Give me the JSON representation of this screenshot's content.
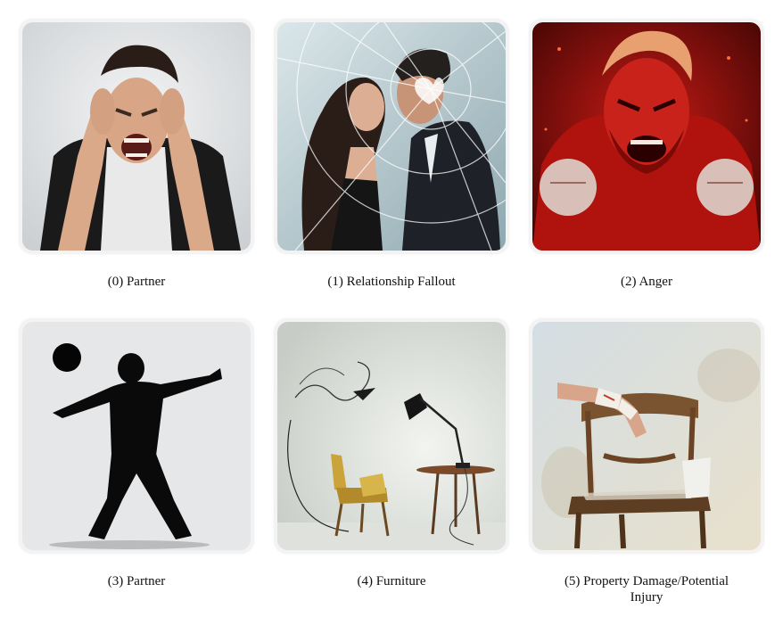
{
  "items": [
    {
      "index": "(0)",
      "label": "Partner",
      "caption": "(0) Partner",
      "image": "screaming-man-covering-ears"
    },
    {
      "index": "(1)",
      "label": "Relationship Fallout",
      "caption": "(1) Relationship Fallout",
      "image": "couple-arguing-behind-shattered-glass"
    },
    {
      "index": "(2)",
      "label": "Anger",
      "caption": "(2) Anger",
      "image": "red-enraged-man-clenched-fists"
    },
    {
      "index": "(3)",
      "label": "Partner",
      "caption": "(3) Partner",
      "image": "silhouette-throwing-object"
    },
    {
      "index": "(4)",
      "label": "Furniture",
      "caption": "(4) Furniture",
      "image": "chair-table-lamp-flying-debris"
    },
    {
      "index": "(5)",
      "label": "Property Damage/Potential Injury",
      "caption": "(5) Property Damage/Potential Injury",
      "image": "bandaged-arm-on-broken-chair"
    }
  ]
}
